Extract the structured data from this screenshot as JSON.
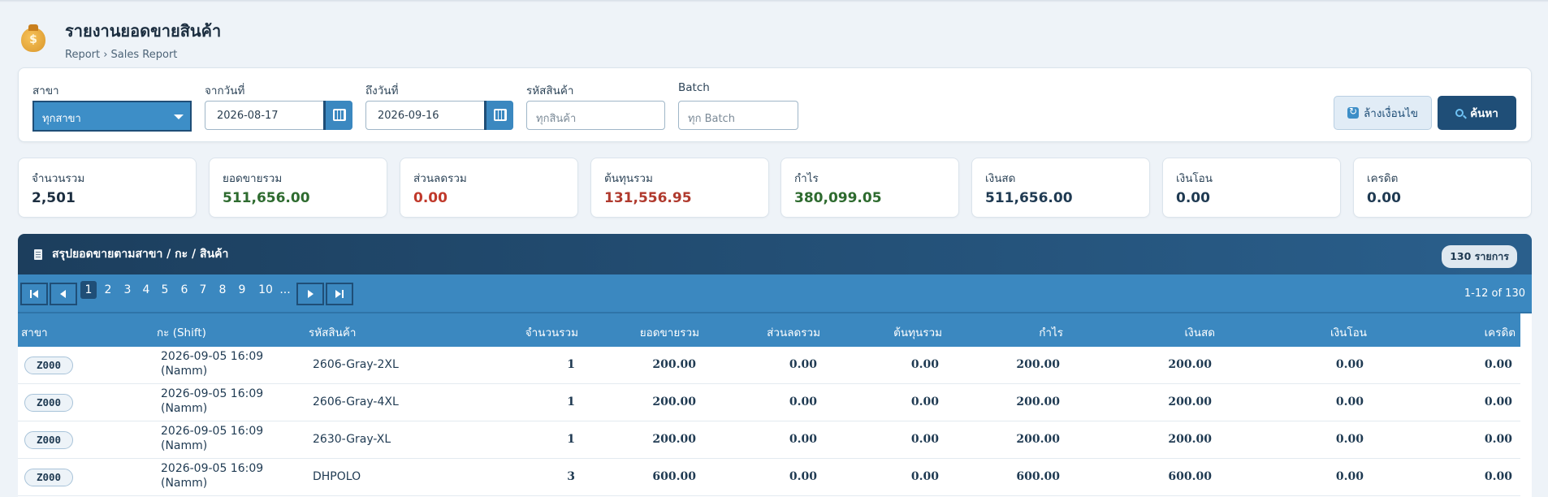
{
  "header": {
    "title": "รายงานยอดขายสินค้า",
    "breadcrumb": "Report › Sales Report",
    "icon": "money-bag-icon"
  },
  "filters": {
    "branch_label": "สาขา",
    "branch_value": "ทุกสาขา",
    "from_label": "จากวันที่",
    "from_value": "2026-08-17",
    "to_label": "ถึงวันที่",
    "to_value": "2026-09-16",
    "product_label": "รหัสสินค้า",
    "product_placeholder": "ทุกสินค้า",
    "batch_label": "Batch",
    "batch_placeholder": "ทุก Batch",
    "clear_label": "ล้างเงื่อนไข",
    "search_label": "ค้นหา"
  },
  "stats": [
    {
      "label": "จำนวนรวม",
      "value": "2,501",
      "color": "#1c2e40"
    },
    {
      "label": "ยอดขายรวม",
      "value": "511,656.00",
      "color": "#2e6b2f"
    },
    {
      "label": "ส่วนลดรวม",
      "value": "0.00",
      "color": "#c0392b"
    },
    {
      "label": "ต้นทุนรวม",
      "value": "131,556.95",
      "color": "#b03a2e"
    },
    {
      "label": "กำไร",
      "value": "380,099.05",
      "color": "#2e6b2f"
    },
    {
      "label": "เงินสด",
      "value": "511,656.00",
      "color": "#1f3a52"
    },
    {
      "label": "เงินโอน",
      "value": "0.00",
      "color": "#1f3a52"
    },
    {
      "label": "เครดิต",
      "value": "0.00",
      "color": "#1f3a52"
    }
  ],
  "table": {
    "title": "สรุปยอดขายตามสาขา / กะ / สินค้า",
    "count_badge": "130 รายการ",
    "pager": {
      "pages": [
        "1",
        "2",
        "3",
        "4",
        "5",
        "6",
        "7",
        "8",
        "9",
        "10",
        "..."
      ],
      "active": "1",
      "range": "1-12 of 130"
    },
    "columns": [
      "สาขา",
      "กะ (Shift)",
      "รหัสสินค้า",
      "จำนวนรวม",
      "ยอดขายรวม",
      "ส่วนลดรวม",
      "ต้นทุนรวม",
      "กำไร",
      "เงินสด",
      "เงินโอน",
      "เครดิต"
    ],
    "rows": [
      {
        "branch": "Z000",
        "shift_date": "2026-09-05 16:09",
        "shift_user": "(Namm)",
        "code": "2606-Gray-2XL",
        "qty": "1",
        "sales": "200.00",
        "discount": "0.00",
        "cost": "0.00",
        "profit": "200.00",
        "cash": "200.00",
        "transfer": "0.00",
        "credit": "0.00"
      },
      {
        "branch": "Z000",
        "shift_date": "2026-09-05 16:09",
        "shift_user": "(Namm)",
        "code": "2606-Gray-4XL",
        "qty": "1",
        "sales": "200.00",
        "discount": "0.00",
        "cost": "0.00",
        "profit": "200.00",
        "cash": "200.00",
        "transfer": "0.00",
        "credit": "0.00"
      },
      {
        "branch": "Z000",
        "shift_date": "2026-09-05 16:09",
        "shift_user": "(Namm)",
        "code": "2630-Gray-XL",
        "qty": "1",
        "sales": "200.00",
        "discount": "0.00",
        "cost": "0.00",
        "profit": "200.00",
        "cash": "200.00",
        "transfer": "0.00",
        "credit": "0.00"
      },
      {
        "branch": "Z000",
        "shift_date": "2026-09-05 16:09",
        "shift_user": "(Namm)",
        "code": "DHPOLO",
        "qty": "3",
        "sales": "600.00",
        "discount": "0.00",
        "cost": "0.00",
        "profit": "600.00",
        "cash": "600.00",
        "transfer": "0.00",
        "credit": "0.00"
      }
    ]
  }
}
